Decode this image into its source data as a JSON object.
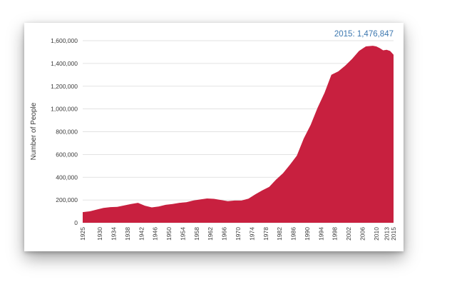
{
  "chart_data": {
    "type": "area",
    "title": "",
    "xlabel": "",
    "ylabel": "Number of People",
    "ylim": [
      0,
      1600000
    ],
    "yticks": [
      0,
      200000,
      400000,
      600000,
      800000,
      1000000,
      1200000,
      1400000,
      1600000
    ],
    "yticklabels": [
      "0",
      "200,000",
      "400,000",
      "600,000",
      "800,000",
      "1,000,000",
      "1,200,000",
      "1,400,000",
      "1,600,000"
    ],
    "xlim": [
      1925,
      2015
    ],
    "xticks": [
      1925,
      1930,
      1934,
      1938,
      1942,
      1946,
      1950,
      1954,
      1958,
      1962,
      1966,
      1970,
      1974,
      1978,
      1982,
      1986,
      1990,
      1994,
      1998,
      2002,
      2006,
      2010,
      2013,
      2015
    ],
    "grid": true,
    "color": "#c8203f",
    "annotation": "2015: 1,476,847",
    "series": [
      {
        "x": [
          1925,
          1927,
          1929,
          1931,
          1933,
          1935,
          1937,
          1939,
          1941,
          1943,
          1945,
          1947,
          1949,
          1951,
          1953,
          1955,
          1957,
          1959,
          1961,
          1963,
          1965,
          1967,
          1969,
          1971,
          1973,
          1975,
          1977,
          1979,
          1981,
          1983,
          1985,
          1987,
          1989,
          1991,
          1993,
          1995,
          1997,
          1999,
          2001,
          2003,
          2005,
          2007,
          2009,
          2010,
          2011,
          2012,
          2013,
          2014,
          2015
        ],
        "values": [
          93000,
          100000,
          115000,
          130000,
          137000,
          140000,
          152000,
          165000,
          175000,
          150000,
          135000,
          143000,
          158000,
          165000,
          175000,
          180000,
          195000,
          205000,
          213000,
          210000,
          200000,
          190000,
          195000,
          195000,
          212000,
          250000,
          285000,
          315000,
          380000,
          435000,
          510000,
          590000,
          740000,
          860000,
          1010000,
          1140000,
          1300000,
          1330000,
          1380000,
          1440000,
          1510000,
          1550000,
          1555000,
          1550000,
          1535000,
          1515000,
          1520000,
          1510000,
          1476847
        ]
      }
    ]
  }
}
